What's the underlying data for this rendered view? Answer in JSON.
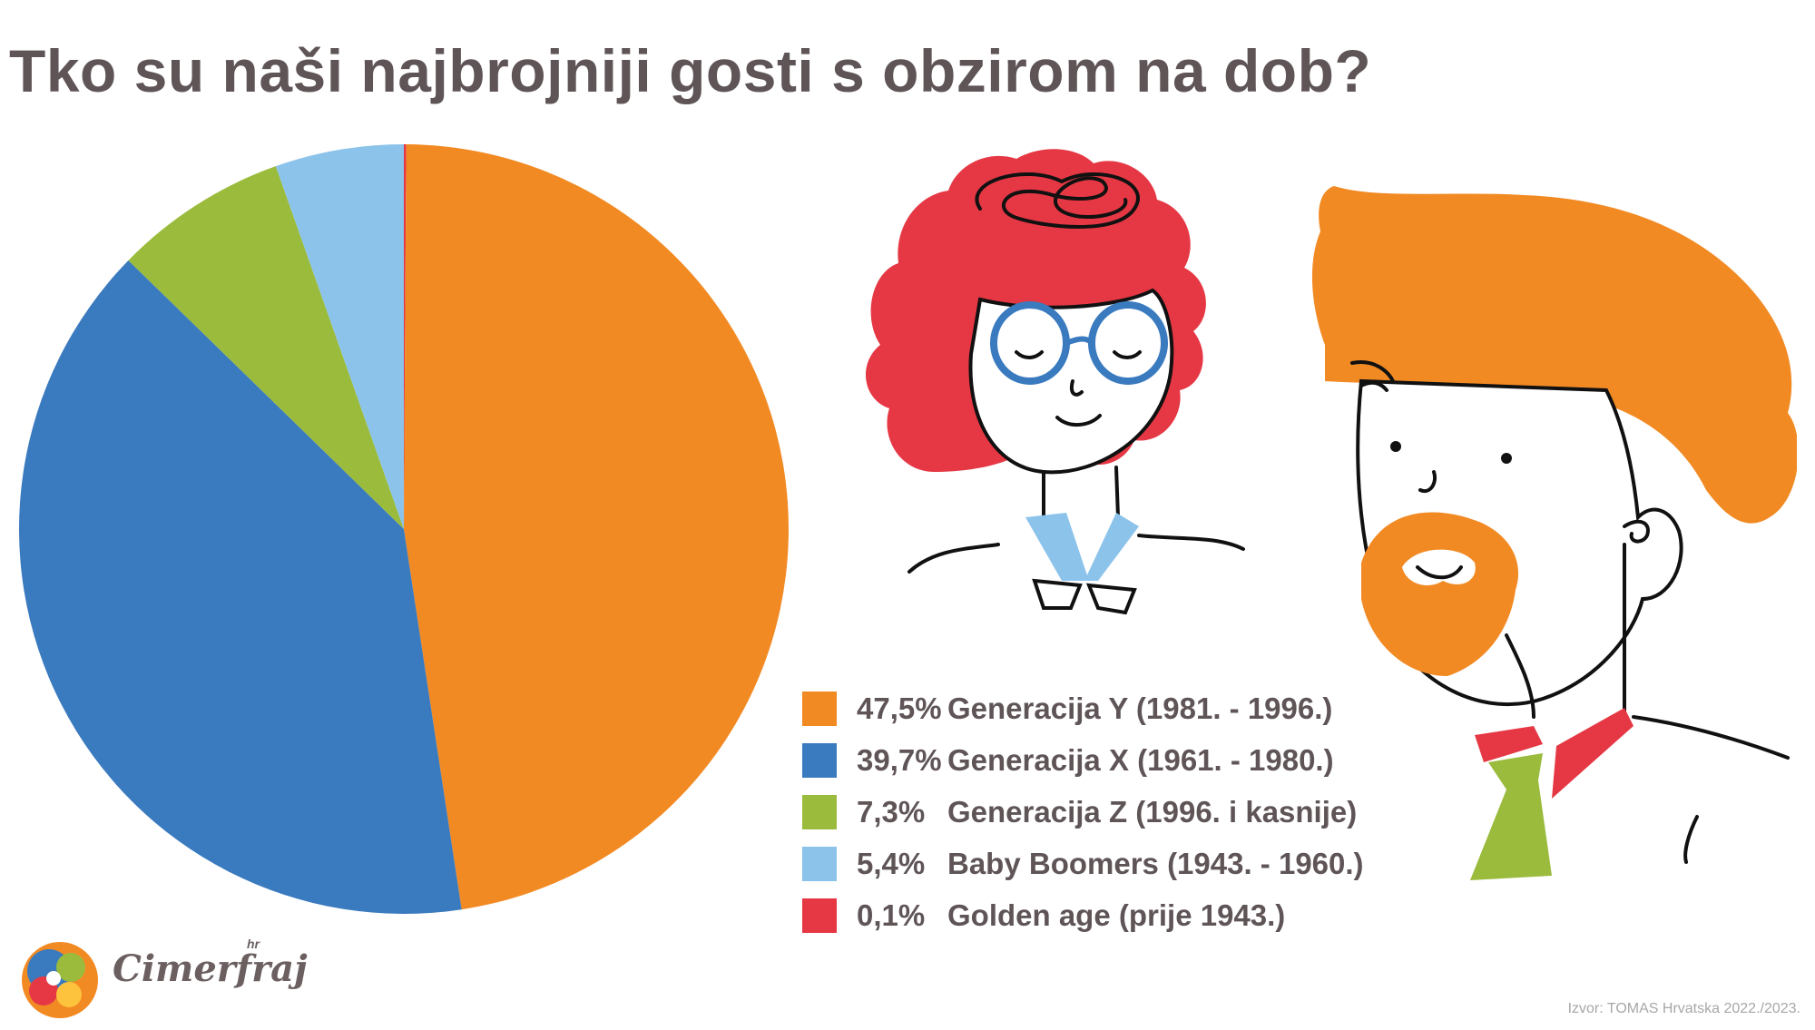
{
  "chart_data": {
    "type": "pie",
    "title": "Tko su naši najbrojniji gosti s obzirom na dob?",
    "slices": [
      {
        "label": "Generacija Y (1981. - 1996.)",
        "value": 47.5,
        "value_label": "47,5%",
        "color": "#f28a24"
      },
      {
        "label": "Generacija X (1961. - 1980.)",
        "value": 39.7,
        "value_label": "39,7%",
        "color": "#3a7abf"
      },
      {
        "label": "Generacija Z (1996. i kasnije)",
        "value": 7.3,
        "value_label": "7,3%",
        "color": "#9bbb3d"
      },
      {
        "label": "Baby Boomers (1943. - 1960.)",
        "value": 5.4,
        "value_label": "5,4%",
        "color": "#8cc3ea"
      },
      {
        "label": "Golden age (prije 1943.)",
        "value": 0.1,
        "value_label": "0,1%",
        "color": "#e53844"
      }
    ],
    "pie_order": [
      4,
      0,
      1,
      2,
      3
    ],
    "legend_position": "right"
  },
  "source": "Izvor: TOMAS Hrvatska 2022./2023.",
  "logo": {
    "name": "Cimerfraj",
    "tld": "hr"
  },
  "colors": {
    "hair_red": "#e53844",
    "hair_orange": "#f28a24",
    "glasses_blue": "#3a7abf",
    "collar_blue": "#8cc3ea",
    "tie_green": "#9bbb3d",
    "text_gray": "#5f5557"
  }
}
